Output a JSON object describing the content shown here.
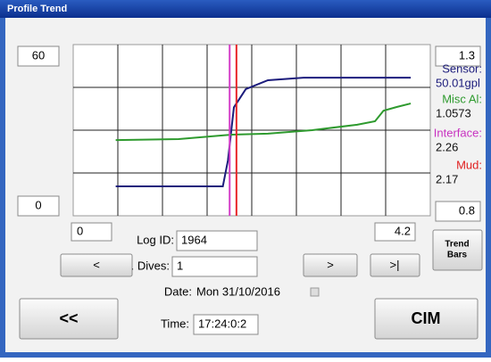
{
  "window": {
    "title": "Profile Trend"
  },
  "chart_data": {
    "type": "line",
    "xlim": [
      0,
      4.2
    ],
    "ylim": [
      0,
      60
    ],
    "y2lim": [
      0.8,
      1.3
    ],
    "grid": {
      "x_divisions": 8,
      "y_divisions": 4
    },
    "series": [
      {
        "color": "#1c1c7c",
        "x": [
          0.5,
          1.76,
          1.82,
          1.89,
          2.03,
          2.29,
          2.71,
          3.97
        ],
        "values": [
          10.3,
          10.3,
          19.4,
          38,
          44.4,
          47.5,
          48.4,
          48.4
        ]
      },
      {
        "color": "#2e9a2e",
        "axis": "y2",
        "x": [
          0.5,
          1.24,
          1.87,
          2.29,
          2.81,
          3.34,
          3.55,
          3.65,
          3.81,
          3.97
        ],
        "values": [
          1.021,
          1.024,
          1.037,
          1.04,
          1.05,
          1.066,
          1.076,
          1.107,
          1.118,
          1.128
        ]
      }
    ],
    "markers": [
      {
        "color": "#d33cc8",
        "x": 1.84
      },
      {
        "color": "#e8262a",
        "x": 1.92
      }
    ]
  },
  "readouts": [
    {
      "label": "Sensor:",
      "value": "50.01gpl",
      "color": "#1c1c7c"
    },
    {
      "label": "Misc Al:",
      "value": "1.0573",
      "color": "#2e9a2e"
    },
    {
      "label": "Interface:",
      "value": "2.26",
      "color": "#c832c0"
    },
    {
      "label": "Mud:",
      "value": "2.17",
      "color": "#e02020"
    }
  ],
  "controls": {
    "log_id_label": "Log ID:",
    "log_id": "1964",
    "dives_label": "No. Dives:",
    "dives": "1",
    "date_label": "Date:",
    "date": "Mon 31/10/2016",
    "time_label": "Time:",
    "time": "17:24:0:2",
    "buttons": {
      "prev": "<",
      "next": ">",
      "last": ">|",
      "trend_bars": [
        "Trend",
        "Bars"
      ],
      "back": "<<",
      "cim": "CIM"
    }
  }
}
